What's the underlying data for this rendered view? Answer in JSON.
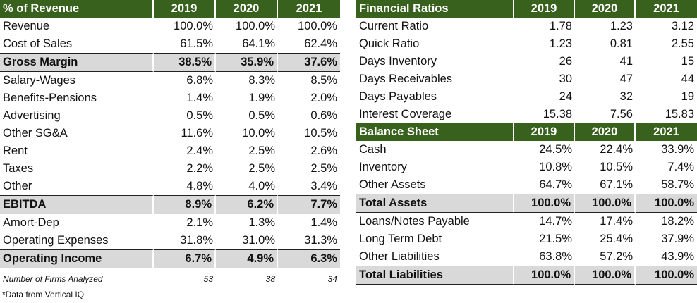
{
  "left": {
    "header": {
      "label": "% of Revenue",
      "y1": "2019",
      "y2": "2020",
      "y3": "2021"
    },
    "rows": [
      {
        "label": "Revenue",
        "v": [
          "100.0%",
          "100.0%",
          "100.0%"
        ]
      },
      {
        "label": "Cost of Sales",
        "v": [
          "61.5%",
          "64.1%",
          "62.4%"
        ]
      },
      {
        "label": "Gross Margin",
        "v": [
          "38.5%",
          "35.9%",
          "37.6%"
        ]
      },
      {
        "label": "Salary-Wages",
        "v": [
          "6.8%",
          "8.3%",
          "8.5%"
        ]
      },
      {
        "label": "Benefits-Pensions",
        "v": [
          "1.4%",
          "1.9%",
          "2.0%"
        ]
      },
      {
        "label": "Advertising",
        "v": [
          "0.5%",
          "0.5%",
          "0.6%"
        ]
      },
      {
        "label": "Other SG&A",
        "v": [
          "11.6%",
          "10.0%",
          "10.5%"
        ]
      },
      {
        "label": "Rent",
        "v": [
          "2.4%",
          "2.5%",
          "2.6%"
        ]
      },
      {
        "label": "Taxes",
        "v": [
          "2.2%",
          "2.5%",
          "2.5%"
        ]
      },
      {
        "label": "Other",
        "v": [
          "4.8%",
          "4.0%",
          "3.4%"
        ]
      },
      {
        "label": "EBITDA",
        "v": [
          "8.9%",
          "6.2%",
          "7.7%"
        ]
      },
      {
        "label": "Amort-Dep",
        "v": [
          "2.1%",
          "1.3%",
          "1.4%"
        ]
      },
      {
        "label": "Operating Expenses",
        "v": [
          "31.8%",
          "31.0%",
          "31.3%"
        ]
      },
      {
        "label": "Operating Income",
        "v": [
          "6.7%",
          "4.9%",
          "6.3%"
        ]
      }
    ],
    "firms": {
      "label": "Number of Firms Analyzed",
      "v": [
        "53",
        "38",
        "34"
      ]
    }
  },
  "right": {
    "ratios_header": {
      "label": "Financial Ratios",
      "y1": "2019",
      "y2": "2020",
      "y3": "2021"
    },
    "ratios": [
      {
        "label": "Current Ratio",
        "v": [
          "1.78",
          "1.23",
          "3.12"
        ]
      },
      {
        "label": "Quick Ratio",
        "v": [
          "1.23",
          "0.81",
          "2.55"
        ]
      },
      {
        "label": "Days Inventory",
        "v": [
          "26",
          "41",
          "15"
        ]
      },
      {
        "label": "Days Receivables",
        "v": [
          "30",
          "47",
          "44"
        ]
      },
      {
        "label": "Days Payables",
        "v": [
          "24",
          "32",
          "19"
        ]
      },
      {
        "label": "Interest Coverage",
        "v": [
          "15.38",
          "7.56",
          "15.83"
        ]
      }
    ],
    "bs_header": {
      "label": "Balance Sheet",
      "y1": "2019",
      "y2": "2020",
      "y3": "2021"
    },
    "bs": [
      {
        "label": "Cash",
        "v": [
          "24.5%",
          "22.4%",
          "33.9%"
        ]
      },
      {
        "label": "Inventory",
        "v": [
          "10.8%",
          "10.5%",
          "7.4%"
        ]
      },
      {
        "label": "Other Assets",
        "v": [
          "64.7%",
          "67.1%",
          "58.7%"
        ]
      },
      {
        "label": "Total Assets",
        "v": [
          "100.0%",
          "100.0%",
          "100.0%"
        ]
      },
      {
        "label": "Loans/Notes Payable",
        "v": [
          "14.7%",
          "17.4%",
          "18.2%"
        ]
      },
      {
        "label": "Long Term Debt",
        "v": [
          "21.5%",
          "25.4%",
          "37.9%"
        ]
      },
      {
        "label": "Other Liabilities",
        "v": [
          "63.8%",
          "57.2%",
          "43.9%"
        ]
      },
      {
        "label": "Total Liabilities",
        "v": [
          "100.0%",
          "100.0%",
          "100.0%"
        ]
      }
    ]
  },
  "note": "*Data from Vertical IQ",
  "colors": {
    "header_bg": "#38611d",
    "total_bg": "#d9d9d9"
  }
}
